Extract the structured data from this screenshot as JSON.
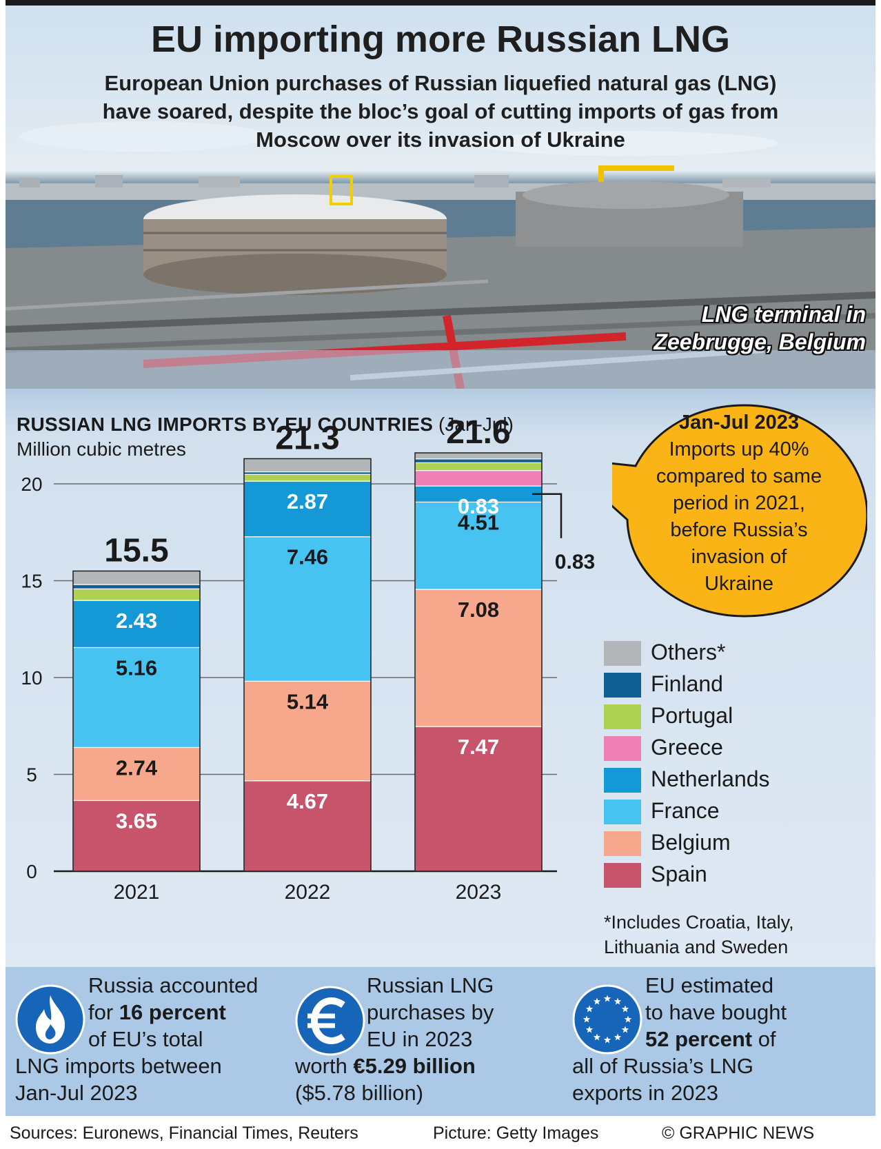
{
  "header": {
    "title": "EU importing more Russian LNG",
    "subtitle_lines": [
      "European Union purchases of Russian liquefied natural gas (LNG)",
      "have soared, despite the bloc’s goal of cutting imports of gas from",
      "Moscow over its invasion of Ukraine"
    ],
    "caption_lines": [
      "LNG terminal in",
      "Zeebrugge, Belgium"
    ]
  },
  "chart_data": {
    "type": "bar",
    "stacked": true,
    "title": "Russian LNG imports by EU countries",
    "title_suffix": "(Jan-Jul)",
    "ylabel": "Million cubic metres",
    "ylim": [
      0,
      22
    ],
    "yticks": [
      0,
      5,
      10,
      15,
      20
    ],
    "grid": true,
    "legend_position": "right",
    "categories": [
      "2021",
      "2022",
      "2023"
    ],
    "totals": [
      15.5,
      21.3,
      21.6
    ],
    "total_labels": [
      "15.5",
      "21.3",
      "21.6"
    ],
    "series": [
      {
        "name": "Spain",
        "color": "#c8546c",
        "values": [
          3.65,
          4.67,
          7.47
        ],
        "labels": [
          "3.65",
          "4.67",
          "7.47"
        ],
        "label_color": "#ffffff"
      },
      {
        "name": "Belgium",
        "color": "#f7a88c",
        "values": [
          2.74,
          5.14,
          7.08
        ],
        "labels": [
          "2.74",
          "5.14",
          "7.08"
        ],
        "label_color": "#1a1a1a"
      },
      {
        "name": "France",
        "color": "#46c3f0",
        "values": [
          5.16,
          7.46,
          4.51
        ],
        "labels": [
          "5.16",
          "7.46",
          "4.51"
        ],
        "label_color": "#1a1a1a"
      },
      {
        "name": "Netherlands",
        "color": "#1499d6",
        "values": [
          2.43,
          2.87,
          0.83
        ],
        "labels": [
          "2.43",
          "2.87",
          "0.83"
        ],
        "label_color": "#ffffff"
      },
      {
        "name": "Greece",
        "color": "#f07fb4",
        "values": [
          0,
          0,
          0.8
        ],
        "labels": [
          "",
          "",
          ""
        ],
        "label_color": "#1a1a1a"
      },
      {
        "name": "Portugal",
        "color": "#aed152",
        "values": [
          0.6,
          0.35,
          0.4
        ],
        "labels": [
          "",
          "",
          ""
        ],
        "label_color": "#1a1a1a"
      },
      {
        "name": "Finland",
        "color": "#0f5f94",
        "values": [
          0.22,
          0.13,
          0.2
        ],
        "labels": [
          "",
          "",
          ""
        ],
        "label_color": "#1a1a1a"
      },
      {
        "name": "Others*",
        "color": "#b3b6b8",
        "values": [
          0.7,
          0.68,
          0.31
        ],
        "labels": [
          "",
          "",
          ""
        ],
        "label_color": "#1a1a1a"
      }
    ],
    "annotation": {
      "text": "0.83",
      "series": "Netherlands",
      "category": "2023"
    },
    "footnote_lines": [
      "*Includes Croatia, Italy,",
      "Lithuania and Sweden"
    ]
  },
  "callout": {
    "heading": "Jan-Jul 2023",
    "lines": [
      "Imports up 40%",
      "compared to same",
      "period in 2021,",
      "before Russia’s",
      "invasion of",
      "Ukraine"
    ],
    "color": "#fbb415"
  },
  "facts": [
    {
      "icon": "flame-icon",
      "lines": [
        [
          "Russia accounted",
          ""
        ],
        [
          "for ",
          "16 percent"
        ],
        [
          "of EU’s total",
          ""
        ],
        [
          "LNG imports between",
          ""
        ],
        [
          "Jan-Jul 2023",
          ""
        ]
      ]
    },
    {
      "icon": "euro-icon",
      "lines": [
        [
          "Russian LNG",
          ""
        ],
        [
          "purchases by",
          ""
        ],
        [
          "EU in 2023",
          ""
        ],
        [
          "worth ",
          "€5.29 billion"
        ],
        [
          "($5.78 billion)",
          ""
        ]
      ]
    },
    {
      "icon": "eu-flag-icon",
      "lines": [
        [
          "EU estimated",
          ""
        ],
        [
          "to have bought",
          ""
        ],
        [
          "",
          "52 percent",
          " of"
        ],
        [
          "all of Russia’s LNG",
          ""
        ],
        [
          "exports in 2023",
          ""
        ]
      ]
    }
  ],
  "icon_color": "#1665b8",
  "footer": {
    "sources": "Sources: Euronews, Financial Times, Reuters",
    "picture": "Picture: Getty Images",
    "copyright": "© GRAPHIC NEWS"
  }
}
